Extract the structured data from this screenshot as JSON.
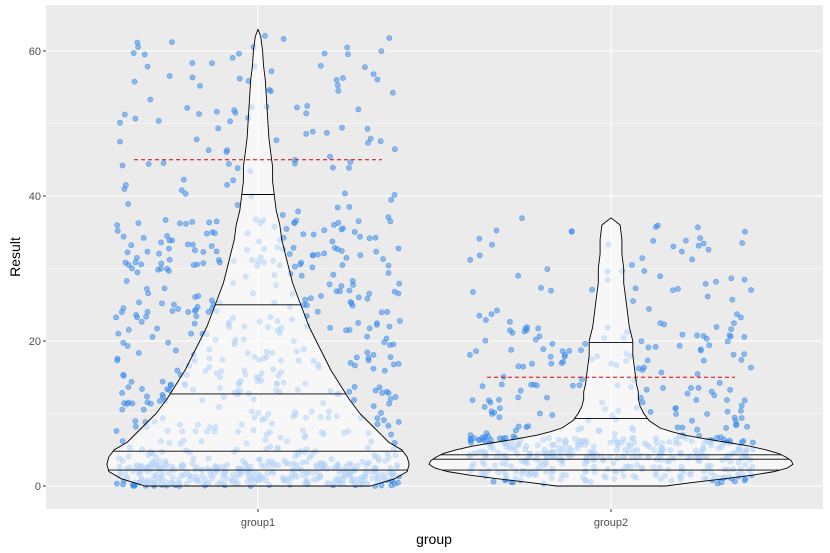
{
  "chart_data": {
    "type": "violin",
    "xlabel": "group",
    "ylabel": "Result",
    "categories": [
      "group1",
      "group2"
    ],
    "ylim": [
      -3.2,
      66.5
    ],
    "yticks": [
      0,
      20,
      40,
      60
    ],
    "ytick_labels": [
      "0",
      "20",
      "40",
      "60"
    ],
    "grid": true,
    "panel_background": "#ebebeb",
    "grid_color": "#ffffff",
    "point_color": "#3a8ef0",
    "reference_line_color": "#e00000",
    "groups": [
      {
        "name": "group1",
        "min": 0,
        "max": 63,
        "n_points": 850,
        "quantiles": [
          2.2,
          4.8,
          12.7,
          25.0,
          40.2
        ],
        "reference_line": 45,
        "density": [
          [
            0,
            0.62
          ],
          [
            1,
            0.75
          ],
          [
            2,
            0.82
          ],
          [
            3,
            0.83
          ],
          [
            4,
            0.82
          ],
          [
            5,
            0.79
          ],
          [
            6,
            0.72
          ],
          [
            8,
            0.64
          ],
          [
            10,
            0.56
          ],
          [
            12,
            0.5
          ],
          [
            14,
            0.45
          ],
          [
            16,
            0.4
          ],
          [
            18,
            0.36
          ],
          [
            20,
            0.32
          ],
          [
            22,
            0.28
          ],
          [
            24,
            0.25
          ],
          [
            26,
            0.22
          ],
          [
            28,
            0.19
          ],
          [
            30,
            0.17
          ],
          [
            32,
            0.15
          ],
          [
            34,
            0.13
          ],
          [
            36,
            0.12
          ],
          [
            38,
            0.1
          ],
          [
            40,
            0.09
          ],
          [
            42,
            0.08
          ],
          [
            44,
            0.08
          ],
          [
            46,
            0.07
          ],
          [
            48,
            0.06
          ],
          [
            50,
            0.055
          ],
          [
            52,
            0.05
          ],
          [
            54,
            0.045
          ],
          [
            56,
            0.04
          ],
          [
            58,
            0.03
          ],
          [
            60,
            0.025
          ],
          [
            62,
            0.015
          ],
          [
            63,
            0.0
          ]
        ]
      },
      {
        "name": "group2",
        "min": 0,
        "max": 37,
        "n_points": 560,
        "quantiles": [
          2.2,
          3.7,
          4.3,
          9.3,
          19.8
        ],
        "reference_line": 15,
        "density": [
          [
            0,
            0.3
          ],
          [
            0.5,
            0.45
          ],
          [
            1,
            0.62
          ],
          [
            1.5,
            0.78
          ],
          [
            2,
            0.9
          ],
          [
            2.5,
            0.97
          ],
          [
            3,
            1.0
          ],
          [
            3.5,
            0.99
          ],
          [
            4,
            0.96
          ],
          [
            4.5,
            0.92
          ],
          [
            5,
            0.85
          ],
          [
            5.5,
            0.76
          ],
          [
            6,
            0.64
          ],
          [
            6.5,
            0.52
          ],
          [
            7,
            0.41
          ],
          [
            7.5,
            0.33
          ],
          [
            8,
            0.27
          ],
          [
            9,
            0.21
          ],
          [
            10,
            0.18
          ],
          [
            11,
            0.16
          ],
          [
            12,
            0.15
          ],
          [
            13,
            0.15
          ],
          [
            14,
            0.14
          ],
          [
            16,
            0.13
          ],
          [
            18,
            0.12
          ],
          [
            20,
            0.12
          ],
          [
            22,
            0.1
          ],
          [
            24,
            0.09
          ],
          [
            26,
            0.08
          ],
          [
            28,
            0.07
          ],
          [
            30,
            0.07
          ],
          [
            32,
            0.06
          ],
          [
            34,
            0.06
          ],
          [
            36,
            0.05
          ],
          [
            37,
            0.0
          ]
        ]
      }
    ]
  }
}
